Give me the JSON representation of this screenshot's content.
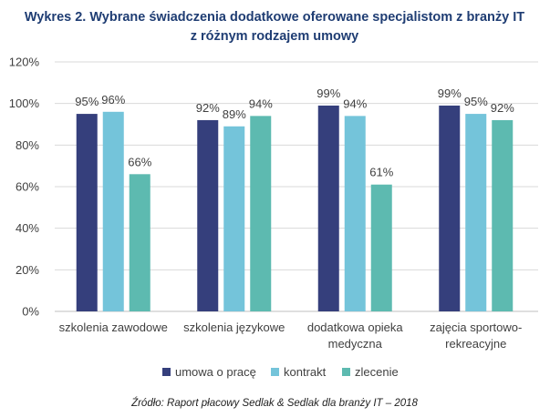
{
  "chart_data": {
    "type": "bar",
    "title_lines": [
      "Wykres 2. Wybrane świadczenia dodatkowe oferowane specjalistom z branży IT",
      "z różnym rodzajem umowy"
    ],
    "categories": [
      [
        "szkolenia zawodowe"
      ],
      [
        "szkolenia językowe"
      ],
      [
        "dodatkowa opieka",
        "medyczna"
      ],
      [
        "zajęcia sportowo-",
        "rekreacyjne"
      ]
    ],
    "series": [
      {
        "name": "umowa o pracę",
        "values": [
          95,
          92,
          99,
          99
        ],
        "labels": [
          "95%",
          "92%",
          "99%",
          "99%"
        ],
        "color": "#353f7c"
      },
      {
        "name": "kontrakt",
        "values": [
          96,
          89,
          94,
          95
        ],
        "labels": [
          "96%",
          "89%",
          "94%",
          "95%"
        ],
        "color": "#74c4da"
      },
      {
        "name": "zlecenie",
        "values": [
          66,
          94,
          61,
          92
        ],
        "labels": [
          "66%",
          "94%",
          "61%",
          "92%"
        ],
        "color": "#5dbab0"
      }
    ],
    "ylim": [
      0,
      120
    ],
    "yticks": [
      0,
      20,
      40,
      60,
      80,
      100,
      120
    ],
    "ytick_labels": [
      "0%",
      "20%",
      "40%",
      "60%",
      "80%",
      "100%",
      "120%"
    ],
    "grid": true,
    "legend_position": "bottom",
    "xlabel": "",
    "ylabel": "",
    "source": "Źródło: Raport płacowy Sedlak & Sedlak dla branży IT – 2018"
  }
}
